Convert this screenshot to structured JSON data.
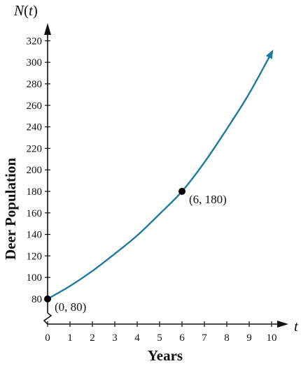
{
  "chart_data": {
    "type": "line",
    "title": "",
    "xlabel": "Years",
    "ylabel": "Deer Population",
    "x_var": "t",
    "y_var": "N(t)",
    "xlim": [
      0,
      10
    ],
    "ylim": [
      80,
      320
    ],
    "y_axis_break": true,
    "grid": false,
    "x_ticks": [
      0,
      1,
      2,
      3,
      4,
      5,
      6,
      7,
      8,
      9,
      10
    ],
    "y_ticks": [
      80,
      100,
      120,
      140,
      160,
      180,
      200,
      220,
      240,
      260,
      280,
      300,
      320
    ],
    "series": [
      {
        "color": "#1f7a9c",
        "x": [
          0,
          1,
          2,
          3,
          4,
          5,
          6,
          7,
          8,
          9,
          10
        ],
        "y": [
          80,
          92,
          106,
          122,
          139,
          159,
          180,
          207,
          238,
          271,
          309
        ]
      }
    ],
    "points": [
      {
        "x": 0,
        "y": 80,
        "label": "(0, 80)"
      },
      {
        "x": 6,
        "y": 180,
        "label": "(6, 180)"
      }
    ]
  }
}
